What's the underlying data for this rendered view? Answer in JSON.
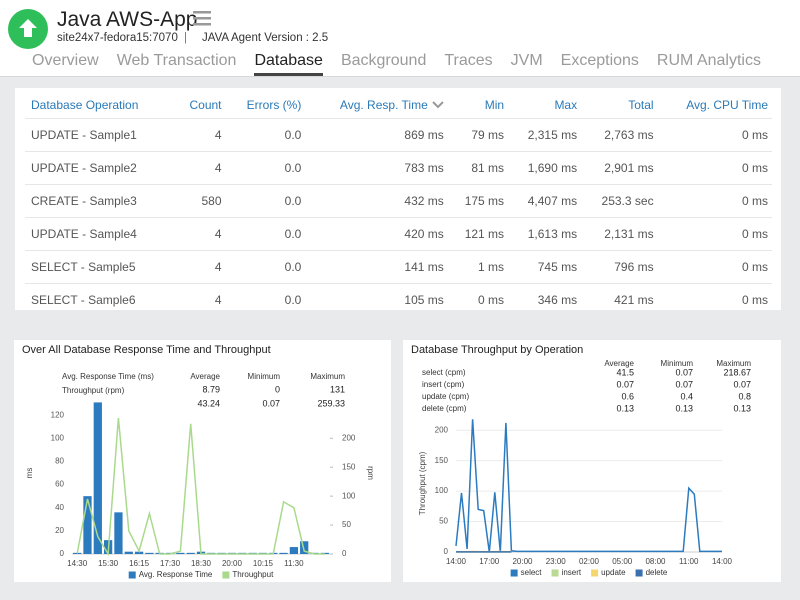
{
  "header": {
    "app_name": "Java AWS-App",
    "host": "site24x7-fedora15:7070",
    "separator": "|",
    "agent": "JAVA Agent Version : 2.5"
  },
  "tabs": [
    {
      "label": "Overview"
    },
    {
      "label": "Web Transaction"
    },
    {
      "label": "Database",
      "active": true
    },
    {
      "label": "Background"
    },
    {
      "label": "Traces"
    },
    {
      "label": "JVM"
    },
    {
      "label": "Exceptions"
    },
    {
      "label": "RUM Analytics"
    }
  ],
  "table": {
    "columns": [
      "Database Operation",
      "Count",
      "Errors (%)",
      "Avg. Resp. Time",
      "Min",
      "Max",
      "Total",
      "Avg. CPU Time"
    ],
    "rows": [
      [
        "UPDATE - Sample1",
        "4",
        "0.0",
        "869 ms",
        "79 ms",
        "2,315 ms",
        "2,763 ms",
        "0 ms"
      ],
      [
        "UPDATE - Sample2",
        "4",
        "0.0",
        "783 ms",
        "81 ms",
        "1,690 ms",
        "2,901 ms",
        "0 ms"
      ],
      [
        "CREATE - Sample3",
        "580",
        "0.0",
        "432 ms",
        "175 ms",
        "4,407 ms",
        "253.3 sec",
        "0 ms"
      ],
      [
        "UPDATE - Sample4",
        "4",
        "0.0",
        "420 ms",
        "121 ms",
        "1,613 ms",
        "2,131 ms",
        "0 ms"
      ],
      [
        "SELECT - Sample5",
        "4",
        "0.0",
        "141 ms",
        "1 ms",
        "745 ms",
        "796 ms",
        "0 ms"
      ],
      [
        "SELECT - Sample6",
        "4",
        "0.0",
        "105 ms",
        "0 ms",
        "346 ms",
        "421 ms",
        "0 ms"
      ]
    ]
  },
  "chart_data": [
    {
      "type": "combo",
      "title": "Over All Database Response Time and Throughput",
      "stats": {
        "columns": [
          "Average",
          "Minimum",
          "Maximum"
        ],
        "rows": [
          {
            "label": "Avg. Response Time (ms)",
            "values": [
              "8.79",
              "0",
              "131"
            ]
          },
          {
            "label": "Throughput (rpm)",
            "values": [
              "43.24",
              "0.07",
              "259.33"
            ]
          }
        ]
      },
      "categories": [
        "14:30",
        null,
        null,
        "15:30",
        null,
        null,
        "16:15",
        null,
        null,
        "17:30",
        null,
        null,
        "18:30",
        null,
        null,
        "20:00",
        null,
        null,
        "10:15",
        null,
        null,
        "11:30",
        null,
        null,
        null
      ],
      "series": [
        {
          "name": "Avg. Response Time",
          "type": "bar",
          "color": "#2c7bbf",
          "values": [
            1,
            50,
            131,
            12,
            36,
            2,
            2,
            1,
            1,
            1,
            1,
            1,
            2,
            1,
            1,
            1,
            1,
            1,
            1,
            1,
            1,
            6,
            11,
            1,
            1
          ]
        },
        {
          "name": "Throughput",
          "type": "line",
          "axis": "y2",
          "color": "#a9da8c",
          "values": [
            1,
            95,
            30,
            0,
            235,
            40,
            5,
            70,
            0,
            0,
            5,
            225,
            0,
            0,
            0,
            0,
            0,
            0,
            0,
            0,
            90,
            80,
            5,
            0,
            0
          ]
        }
      ],
      "ylabel": "ms",
      "y2label": "rpm",
      "ylim": [
        0,
        140
      ],
      "yticks": [
        0,
        20,
        40,
        60,
        80,
        100,
        120
      ],
      "y2lim": [
        0,
        280
      ],
      "y2ticks": [
        0,
        50,
        100,
        150,
        200
      ],
      "grid": false
    },
    {
      "type": "line",
      "title": "Database Throughput by Operation",
      "stats": {
        "columns": [
          "Average",
          "Minimum",
          "Maximum"
        ],
        "rows": [
          {
            "label": "select (cpm)",
            "values": [
              "41.5",
              "0.07",
              "218.67"
            ]
          },
          {
            "label": "insert (cpm)",
            "values": [
              "0.07",
              "0.07",
              "0.07"
            ]
          },
          {
            "label": "update (cpm)",
            "values": [
              "0.6",
              "0.4",
              "0.8"
            ]
          },
          {
            "label": "delete (cpm)",
            "values": [
              "0.13",
              "0.13",
              "0.13"
            ]
          }
        ]
      },
      "categories": [
        "14:00",
        null,
        null,
        null,
        null,
        null,
        "17:00",
        null,
        null,
        null,
        null,
        null,
        "20:00",
        null,
        null,
        null,
        null,
        null,
        "23:00",
        null,
        null,
        null,
        null,
        null,
        "02:00",
        null,
        null,
        null,
        null,
        null,
        "05:00",
        null,
        null,
        null,
        null,
        null,
        "08:00",
        null,
        null,
        null,
        null,
        null,
        "11:00",
        null,
        null,
        null,
        null,
        null,
        "14:00"
      ],
      "series": [
        {
          "name": "select",
          "color": "#2c7bbf",
          "values": [
            10,
            97,
            5,
            218,
            70,
            68,
            0,
            98,
            0,
            212,
            2,
            1,
            1,
            1,
            1,
            1,
            1,
            1,
            1,
            1,
            1,
            1,
            1,
            1,
            1,
            1,
            1,
            1,
            1,
            1,
            1,
            1,
            1,
            1,
            1,
            1,
            1,
            1,
            1,
            1,
            1,
            1,
            105,
            95,
            1,
            1,
            1,
            1,
            1
          ]
        },
        {
          "name": "insert",
          "color": "#b9da92",
          "values": [
            0.07,
            0.07,
            0.07,
            0.07,
            0.07,
            0.07,
            0.07,
            0.07,
            0.07,
            0.07,
            0.07,
            null,
            null,
            null,
            null,
            null,
            null,
            null,
            null,
            null,
            null,
            null,
            null,
            null,
            null,
            null,
            null,
            null,
            null,
            null,
            null,
            null,
            null,
            null,
            null,
            null,
            null,
            null,
            null,
            null,
            null,
            null,
            null,
            null,
            null,
            null,
            null,
            null,
            null
          ]
        },
        {
          "name": "update",
          "color": "#f4d66c",
          "values": [
            0.6,
            0.4,
            0.6,
            0.8,
            0.6,
            0.6,
            0.4,
            0.6,
            0.8,
            0.6,
            0.6,
            null,
            null,
            null,
            null,
            null,
            null,
            null,
            null,
            null,
            null,
            null,
            null,
            null,
            null,
            null,
            null,
            null,
            null,
            null,
            null,
            null,
            null,
            null,
            null,
            null,
            null,
            null,
            null,
            null,
            null,
            null,
            null,
            null,
            null,
            null,
            null,
            null,
            null
          ]
        },
        {
          "name": "delete",
          "color": "#3a6fb0",
          "values": [
            0.13,
            0.13,
            0.13,
            0.13,
            0.13,
            0.13,
            0.13,
            0.13,
            0.13,
            0.13,
            0.13,
            null,
            null,
            null,
            null,
            null,
            null,
            null,
            null,
            null,
            null,
            null,
            null,
            null,
            null,
            null,
            null,
            null,
            null,
            null,
            null,
            null,
            null,
            null,
            null,
            null,
            null,
            null,
            null,
            null,
            null,
            null,
            null,
            null,
            null,
            null,
            null,
            null,
            null
          ]
        }
      ],
      "ylabel": "Throughput (cpm)",
      "ylim": [
        0,
        225
      ],
      "yticks": [
        0,
        50,
        100,
        150,
        200
      ],
      "grid": true
    }
  ]
}
